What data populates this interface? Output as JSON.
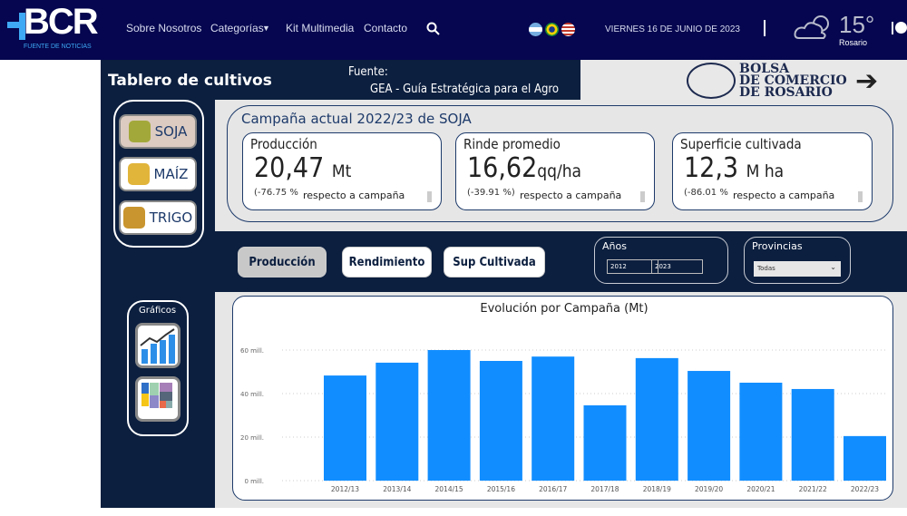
{
  "header": {
    "logo_text": "BCR",
    "logo_sub": "FUENTE DE NOTICIAS",
    "nav": [
      "Sobre Nosotros",
      "Categorías",
      "Kit Multimedia",
      "Contacto"
    ],
    "date": "VIERNES 16 DE JUNIO DE 2023",
    "temp": "15°",
    "city": "Rosario",
    "flags": [
      "argentina",
      "brazil",
      "usa"
    ],
    "icons": [
      "search-icon",
      "cloud-sun-icon",
      "twitter-icon"
    ]
  },
  "dashboard": {
    "title": "Tablero de cultivos",
    "source_label": "Fuente:",
    "source": "GEA -  Guía Estratégica para el Agro",
    "brand": [
      "BOLSA",
      "DE COMERCIO",
      "DE ROSARIO"
    ],
    "crops": [
      {
        "label": "SOJA",
        "selected": true
      },
      {
        "label": "MAÍZ",
        "selected": false
      },
      {
        "label": "TRIGO",
        "selected": false
      }
    ],
    "graficos_label": "Gráficos",
    "campaign_title": "Campaña actual 2022/23 de SOJA",
    "kpis": [
      {
        "label": "Producción",
        "value": "20,47",
        "unit": "Mt",
        "pct": "(-76.75 %",
        "note": "respecto a campaña"
      },
      {
        "label": "Rinde promedio",
        "value": "16,62",
        "unit": "qq/ha",
        "pct": "(-39.91 %)",
        "note": "respecto a campaña"
      },
      {
        "label": "Superficie cultivada",
        "value": "12,3",
        "unit": "M ha",
        "pct": "(-86.01 %",
        "note": "respecto a campaña"
      }
    ],
    "metric_buttons": [
      {
        "label": "Producción",
        "selected": true
      },
      {
        "label": "Rendimiento",
        "selected": false
      },
      {
        "label": "Sup Cultivada",
        "selected": false
      }
    ],
    "years_label": "Años",
    "year_from": "2012",
    "year_to": "2023",
    "prov_label": "Provincias",
    "prov_value": "Todas"
  },
  "chart_data": {
    "type": "bar",
    "title": "Evolución por Campaña (Mt)",
    "categories": [
      "2012/13",
      "2013/14",
      "2014/15",
      "2015/16",
      "2016/17",
      "2017/18",
      "2018/19",
      "2019/20",
      "2020/21",
      "2021/22",
      "2022/23"
    ],
    "values": [
      48.3,
      54.2,
      60.0,
      55.0,
      57.0,
      34.6,
      56.3,
      50.4,
      45.0,
      42.1,
      20.47
    ],
    "yticks": [
      {
        "v": 0,
        "label": "0 mill."
      },
      {
        "v": 20,
        "label": "20 mill."
      },
      {
        "v": 40,
        "label": "40 mill."
      },
      {
        "v": 60,
        "label": "60 mill."
      }
    ],
    "ylim": [
      0,
      60
    ],
    "grid": true,
    "color": "#118dff"
  }
}
